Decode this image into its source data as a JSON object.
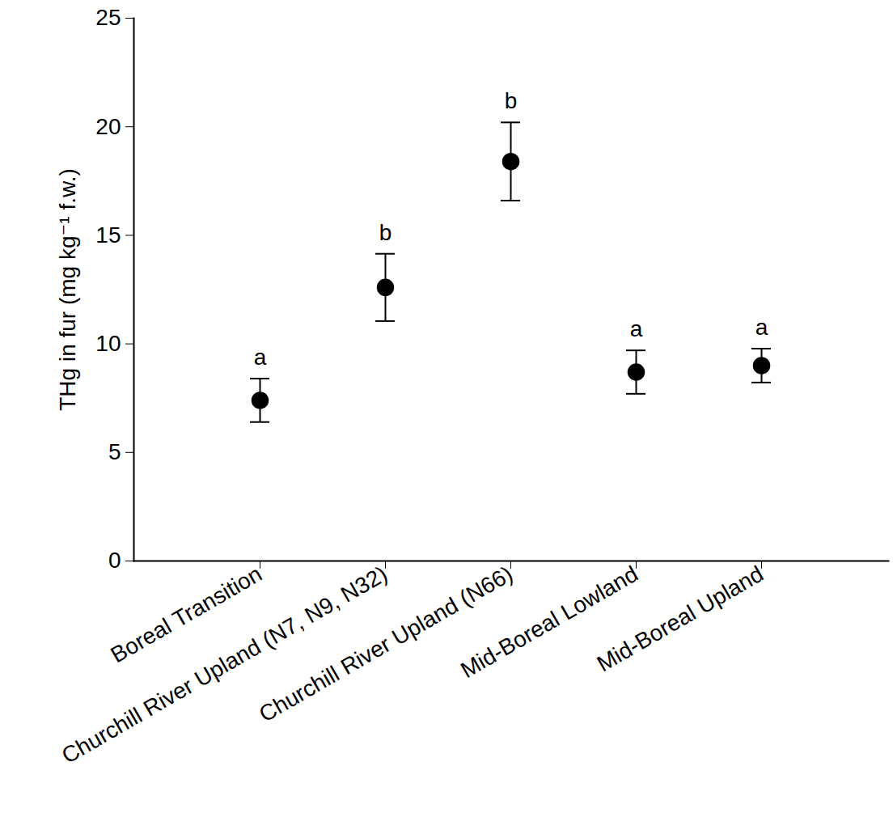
{
  "chart_data": {
    "type": "scatter",
    "y_label": "THg in fur (mg kg⁻¹ f.w.)",
    "categories": [
      "Boreal Transition",
      "Churchill River Upland (N7, N9, N32)",
      "Churchill River Upland (N66)",
      "Mid-Boreal Lowland",
      "Mid-Boreal Upland"
    ],
    "values": [
      7.4,
      12.6,
      18.4,
      8.7,
      9.0
    ],
    "error": [
      1.0,
      1.55,
      1.8,
      1.0,
      0.78
    ],
    "annotations": [
      "a",
      "b",
      "b",
      "a",
      "a"
    ],
    "color": "#000000",
    "marker": "circle",
    "ylim": [
      0,
      25
    ],
    "yticks": [
      0,
      5,
      10,
      15,
      20,
      25
    ],
    "grid": false
  }
}
